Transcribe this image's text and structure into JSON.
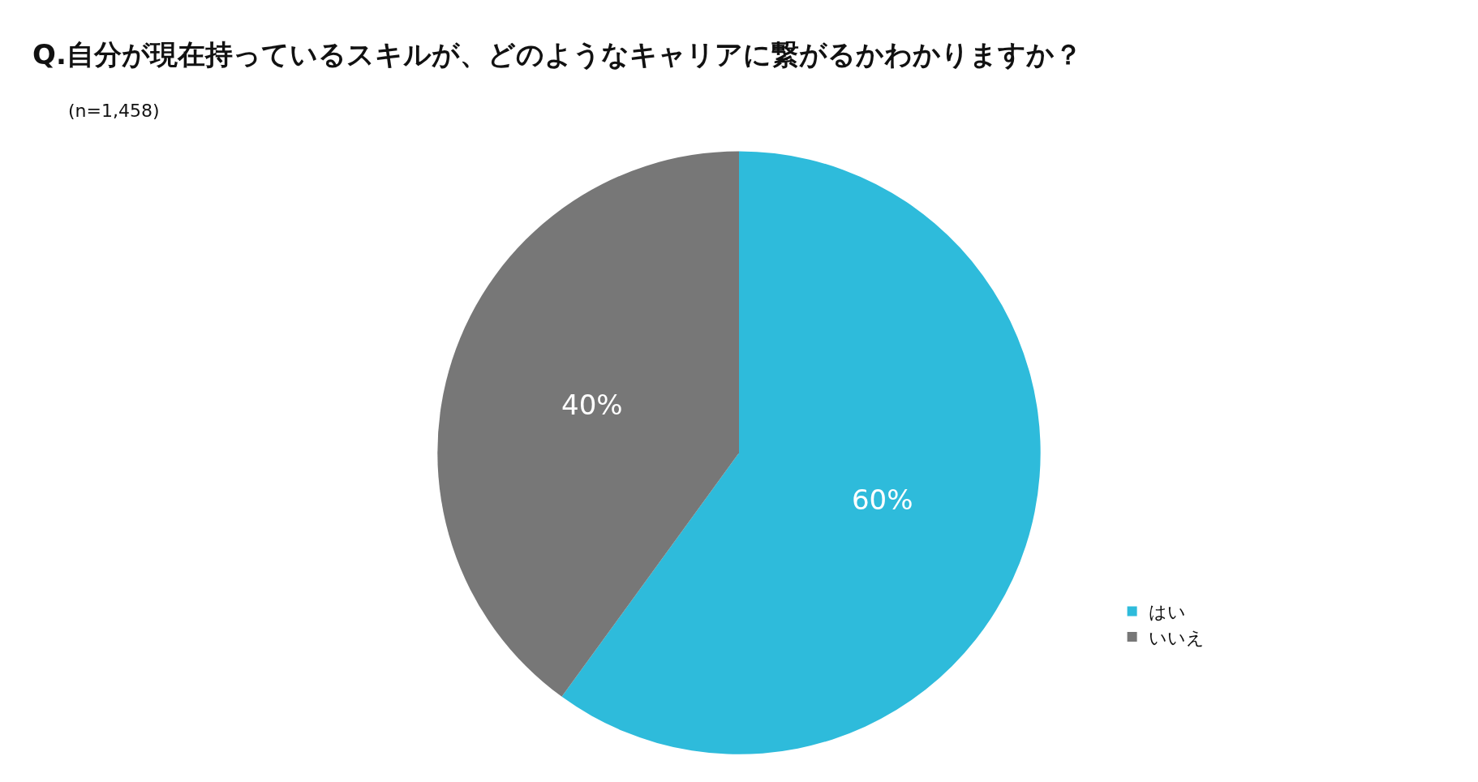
{
  "chart_data": {
    "type": "pie",
    "title": "Q.自分が現在持っているスキルが、どのようなキャリアに繋がるかわかりますか？",
    "subtitle": "(n=1,458)",
    "categories": [
      "はい",
      "いいえ"
    ],
    "values": [
      60,
      40
    ],
    "colors": [
      "#2ebbdb",
      "#777777"
    ],
    "value_labels": [
      "60%",
      "40%"
    ],
    "legend": "bottom right"
  }
}
